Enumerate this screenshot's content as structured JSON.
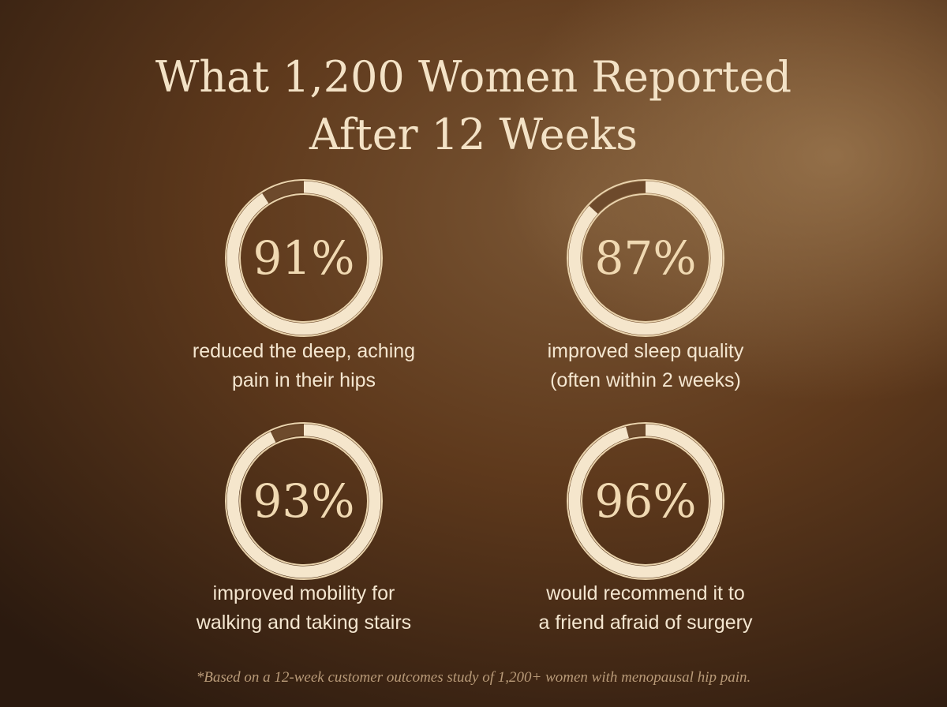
{
  "title": [
    "What 1,200 Women Reported",
    "After 12 Weeks"
  ],
  "stats": [
    {
      "value": 91,
      "value_label": "91%",
      "caption": [
        "reduced the deep, aching",
        "pain in their hips"
      ]
    },
    {
      "value": 87,
      "value_label": "87%",
      "caption": [
        "improved sleep quality",
        "(often within 2 weeks)"
      ]
    },
    {
      "value": 93,
      "value_label": "93%",
      "caption": [
        "improved mobility for",
        "walking and taking stairs"
      ]
    },
    {
      "value": 96,
      "value_label": "96%",
      "caption": [
        "would recommend it to",
        "a friend afraid of surgery"
      ]
    }
  ],
  "footnote": "*Based on a 12-week customer outcomes study of 1,200+ women with menopausal hip pain."
}
